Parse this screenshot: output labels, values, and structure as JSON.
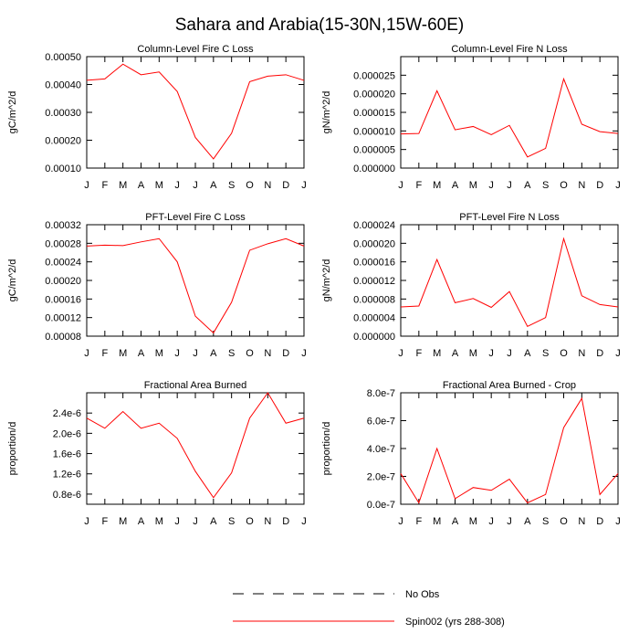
{
  "title": "Sahara and Arabia(15-30N,15W-60E)",
  "colors": {
    "series": "#ff0000",
    "axis": "#000000"
  },
  "month_labels": [
    "J",
    "F",
    "M",
    "A",
    "M",
    "J",
    "J",
    "A",
    "S",
    "O",
    "N",
    "D",
    "J"
  ],
  "legend": [
    {
      "label": "No Obs",
      "style": "dashed",
      "color": "#000000"
    },
    {
      "label": "Spin002 (yrs 288-308)",
      "style": "solid",
      "color": "#ff0000"
    }
  ],
  "chart_data": [
    {
      "type": "line",
      "title": "Column-Level Fire C Loss",
      "ylabel": "gC/m^2/d",
      "ylim": [
        0.0001,
        0.0005
      ],
      "yticks": [
        "0.00010",
        "0.00020",
        "0.00030",
        "0.00040",
        "0.00050"
      ],
      "categories": [
        "J",
        "F",
        "M",
        "A",
        "M",
        "J",
        "J",
        "A",
        "S",
        "O",
        "N",
        "D",
        "J"
      ],
      "series": [
        {
          "name": "Spin002 (yrs 288-308)",
          "values": [
            0.000415,
            0.00042,
            0.000473,
            0.000435,
            0.000445,
            0.000375,
            0.00021,
            0.000133,
            0.000225,
            0.00041,
            0.00043,
            0.000435,
            0.000415
          ]
        }
      ]
    },
    {
      "type": "line",
      "title": "Column-Level Fire N Loss",
      "ylabel": "gN/m^2/d",
      "ylim": [
        0,
        3e-05
      ],
      "yticks": [
        "0.000000",
        "0.000005",
        "0.000010",
        "0.000015",
        "0.000020",
        "0.000025"
      ],
      "categories": [
        "J",
        "F",
        "M",
        "A",
        "M",
        "J",
        "J",
        "A",
        "S",
        "O",
        "N",
        "D",
        "J"
      ],
      "series": [
        {
          "name": "Spin002 (yrs 288-308)",
          "values": [
            9.2e-06,
            9.3e-06,
            2.08e-05,
            1.03e-05,
            1.12e-05,
            9e-06,
            1.15e-05,
            3e-06,
            5.3e-06,
            2.4e-05,
            1.18e-05,
            9.8e-06,
            9.3e-06
          ]
        }
      ]
    },
    {
      "type": "line",
      "title": "PFT-Level Fire C Loss",
      "ylabel": "gC/m^2/d",
      "ylim": [
        8e-05,
        0.00032
      ],
      "yticks": [
        "0.00008",
        "0.00012",
        "0.00016",
        "0.00020",
        "0.00024",
        "0.00028",
        "0.00032"
      ],
      "categories": [
        "J",
        "F",
        "M",
        "A",
        "M",
        "J",
        "J",
        "A",
        "S",
        "O",
        "N",
        "D",
        "J"
      ],
      "series": [
        {
          "name": "Spin002 (yrs 288-308)",
          "values": [
            0.000274,
            0.000276,
            0.000275,
            0.000283,
            0.00029,
            0.00024,
            0.000123,
            8.7e-05,
            0.000153,
            0.000265,
            0.000279,
            0.00029,
            0.000274
          ]
        }
      ]
    },
    {
      "type": "line",
      "title": "PFT-Level Fire N Loss",
      "ylabel": "gN/m^2/d",
      "ylim": [
        0,
        2.4e-05
      ],
      "yticks": [
        "0.000000",
        "0.000004",
        "0.000008",
        "0.000012",
        "0.000016",
        "0.000020",
        "0.000024"
      ],
      "categories": [
        "J",
        "F",
        "M",
        "A",
        "M",
        "J",
        "J",
        "A",
        "S",
        "O",
        "N",
        "D",
        "J"
      ],
      "series": [
        {
          "name": "Spin002 (yrs 288-308)",
          "values": [
            6.3e-06,
            6.5e-06,
            1.65e-05,
            7.2e-06,
            8.1e-06,
            6.2e-06,
            9.6e-06,
            2.1e-06,
            4e-06,
            2.1e-05,
            8.7e-06,
            6.8e-06,
            6.3e-06
          ]
        }
      ]
    },
    {
      "type": "line",
      "title": "Fractional Area Burned",
      "ylabel": "proportion/d",
      "ylim": [
        6e-07,
        2.8e-06
      ],
      "yticks": [
        "0.8e-6",
        "1.2e-6",
        "1.6e-6",
        "2.0e-6",
        "2.4e-6"
      ],
      "ytick_values": [
        8e-07,
        1.2e-06,
        1.6e-06,
        2e-06,
        2.4e-06
      ],
      "categories": [
        "J",
        "F",
        "M",
        "A",
        "M",
        "J",
        "J",
        "A",
        "S",
        "O",
        "N",
        "D",
        "J"
      ],
      "series": [
        {
          "name": "Spin002 (yrs 288-308)",
          "values": [
            2.3e-06,
            2.1e-06,
            2.43e-06,
            2.1e-06,
            2.2e-06,
            1.9e-06,
            1.25e-06,
            7.3e-07,
            1.22e-06,
            2.3e-06,
            2.8e-06,
            2.2e-06,
            2.3e-06
          ]
        }
      ]
    },
    {
      "type": "line",
      "title": "Fractional Area Burned - Crop",
      "ylabel": "proportion/d",
      "ylim": [
        0,
        8e-07
      ],
      "yticks": [
        "0.0e-7",
        "2.0e-7",
        "4.0e-7",
        "6.0e-7",
        "8.0e-7"
      ],
      "ytick_values": [
        0,
        2e-07,
        4e-07,
        6e-07,
        8e-07
      ],
      "categories": [
        "J",
        "F",
        "M",
        "A",
        "M",
        "J",
        "J",
        "A",
        "S",
        "O",
        "N",
        "D",
        "J"
      ],
      "series": [
        {
          "name": "Spin002 (yrs 288-308)",
          "values": [
            2.2e-07,
            1e-08,
            4e-07,
            4e-08,
            1.2e-07,
            1e-07,
            1.8e-07,
            1e-08,
            7e-08,
            5.5e-07,
            7.6e-07,
            7e-08,
            2.2e-07
          ]
        }
      ]
    }
  ]
}
